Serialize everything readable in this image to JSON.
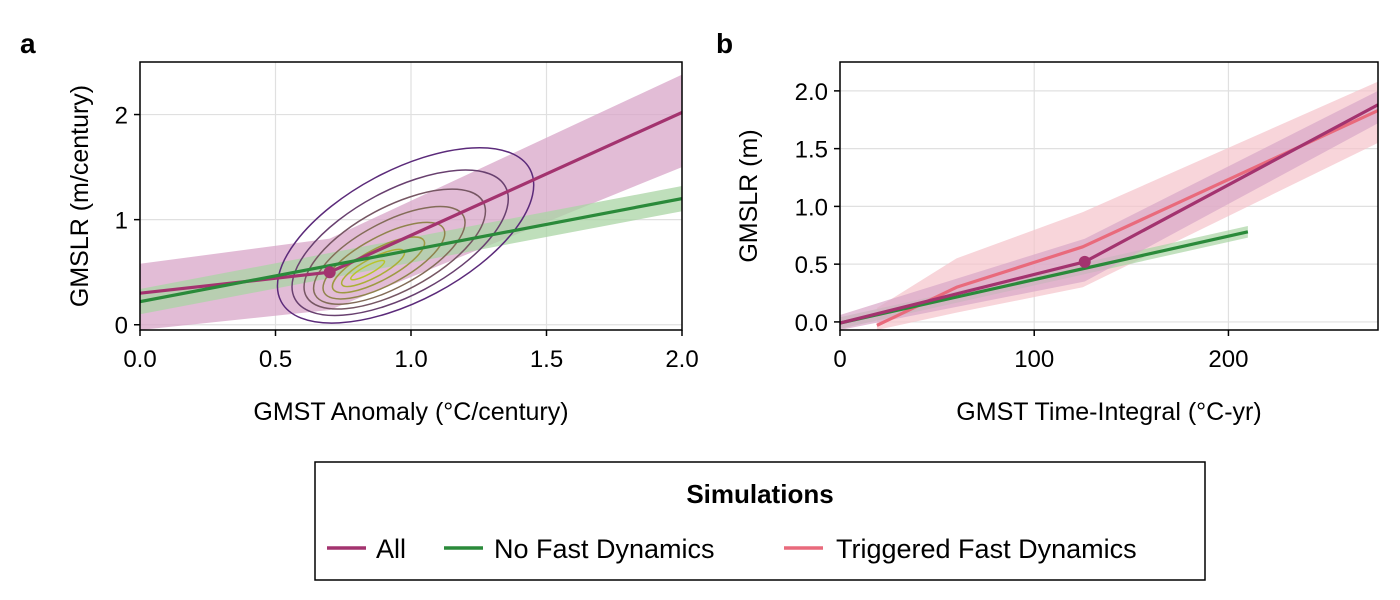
{
  "legend": {
    "title": "Simulations",
    "entries": [
      {
        "label": "All",
        "color": "#a3336f"
      },
      {
        "label": "No Fast Dynamics",
        "color": "#2a8a3a"
      },
      {
        "label": "Triggered Fast Dynamics",
        "color": "#e96a7c"
      }
    ]
  },
  "colors": {
    "all": "#a3336f",
    "all_band": "#d8a6c8",
    "no_fast": "#2a8a3a",
    "no_fast_band": "#a9d4a4",
    "triggered": "#e96a7c",
    "triggered_band": "#f5c3cb",
    "grid": "#e0e0e0",
    "contour_outer": "#5b2a7a",
    "contour_inner": "#b8c52a"
  },
  "chart_data": [
    {
      "panel": "a",
      "type": "line",
      "xlabel": "GMST Anomaly (°C/century)",
      "ylabel": "GMSLR (m/century)",
      "xlim": [
        0,
        2
      ],
      "ylim": [
        -0.05,
        2.5
      ],
      "xticks": [
        0.0,
        0.5,
        1.0,
        1.5,
        2.0
      ],
      "xtick_labels": [
        "0.0",
        "0.5",
        "1.0",
        "1.5",
        "2.0"
      ],
      "yticks": [
        0,
        1,
        2
      ],
      "ytick_labels": [
        "0",
        "1",
        "2"
      ],
      "grid": true,
      "series": [
        {
          "name": "All",
          "x": [
            0.0,
            0.7,
            2.0
          ],
          "y": [
            0.3,
            0.5,
            2.02
          ],
          "band_upper": [
            0.58,
            0.82,
            2.38
          ],
          "band_lower": [
            -0.05,
            0.14,
            1.5
          ]
        },
        {
          "name": "No Fast Dynamics",
          "x": [
            0.0,
            2.0
          ],
          "y": [
            0.22,
            1.2
          ],
          "band_upper": [
            0.34,
            1.32
          ],
          "band_lower": [
            0.1,
            1.08
          ]
        }
      ],
      "marker": {
        "series": "All",
        "x": 0.7,
        "y": 0.5
      },
      "density_contours": {
        "center": [
          0.9,
          0.55
        ],
        "levels": [
          {
            "cx": 0.98,
            "cy": 0.85,
            "rx": 0.52,
            "ry": 0.62
          },
          {
            "cx": 0.96,
            "cy": 0.78,
            "rx": 0.44,
            "ry": 0.5
          },
          {
            "cx": 0.94,
            "cy": 0.72,
            "rx": 0.37,
            "ry": 0.4
          },
          {
            "cx": 0.92,
            "cy": 0.66,
            "rx": 0.31,
            "ry": 0.31
          },
          {
            "cx": 0.9,
            "cy": 0.61,
            "rx": 0.25,
            "ry": 0.23
          },
          {
            "cx": 0.88,
            "cy": 0.57,
            "rx": 0.19,
            "ry": 0.15
          },
          {
            "cx": 0.86,
            "cy": 0.54,
            "rx": 0.13,
            "ry": 0.09
          },
          {
            "cx": 0.84,
            "cy": 0.52,
            "rx": 0.07,
            "ry": 0.04
          }
        ]
      }
    },
    {
      "panel": "b",
      "type": "line",
      "xlabel": "GMST Time-Integral (°C-yr)",
      "ylabel": "GMSLR (m)",
      "xlim": [
        0,
        277
      ],
      "ylim": [
        -0.07,
        2.25
      ],
      "xticks": [
        0,
        100,
        200
      ],
      "xtick_labels": [
        "0",
        "100",
        "200"
      ],
      "yticks": [
        0.0,
        0.5,
        1.0,
        1.5,
        2.0
      ],
      "ytick_labels": [
        "0.0",
        "0.5",
        "1.0",
        "1.5",
        "2.0"
      ],
      "grid": true,
      "series": [
        {
          "name": "Triggered Fast Dynamics",
          "x": [
            19,
            60,
            125,
            277
          ],
          "y": [
            -0.03,
            0.3,
            0.65,
            1.83
          ],
          "band_upper": [
            0.12,
            0.55,
            0.95,
            2.08
          ],
          "band_lower": [
            -0.07,
            0.08,
            0.3,
            1.55
          ]
        },
        {
          "name": "No Fast Dynamics",
          "x": [
            0,
            210
          ],
          "y": [
            -0.01,
            0.78
          ],
          "band_upper": [
            0.04,
            0.83
          ],
          "band_lower": [
            -0.06,
            0.73
          ]
        },
        {
          "name": "All",
          "x": [
            0,
            126,
            277
          ],
          "y": [
            -0.01,
            0.52,
            1.88
          ],
          "band_upper": [
            0.06,
            0.72,
            2.0
          ],
          "band_lower": [
            -0.07,
            0.35,
            1.72
          ]
        }
      ],
      "marker": {
        "series": "All",
        "x": 126,
        "y": 0.52
      }
    }
  ]
}
